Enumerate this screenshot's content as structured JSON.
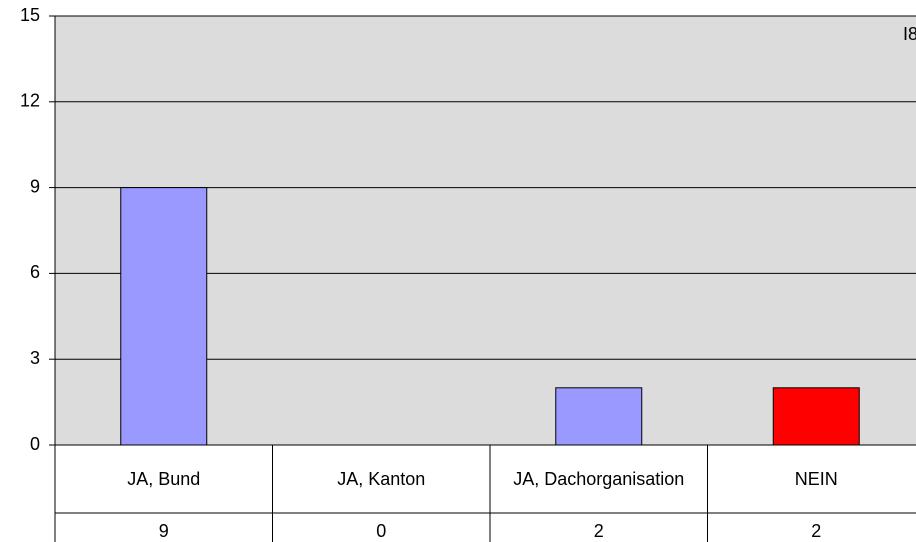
{
  "chart_data": {
    "type": "bar",
    "annotation": "I8",
    "categories": [
      "JA, Bund",
      "JA, Kanton",
      "JA, Dachorganisation",
      "NEIN"
    ],
    "values": [
      9,
      0,
      2,
      2
    ],
    "colors": [
      "#9999ff",
      "#9999ff",
      "#9999ff",
      "#ff0000"
    ],
    "ylim": [
      0,
      15
    ],
    "yticks": [
      0,
      3,
      6,
      9,
      12,
      15
    ],
    "grid": true
  }
}
